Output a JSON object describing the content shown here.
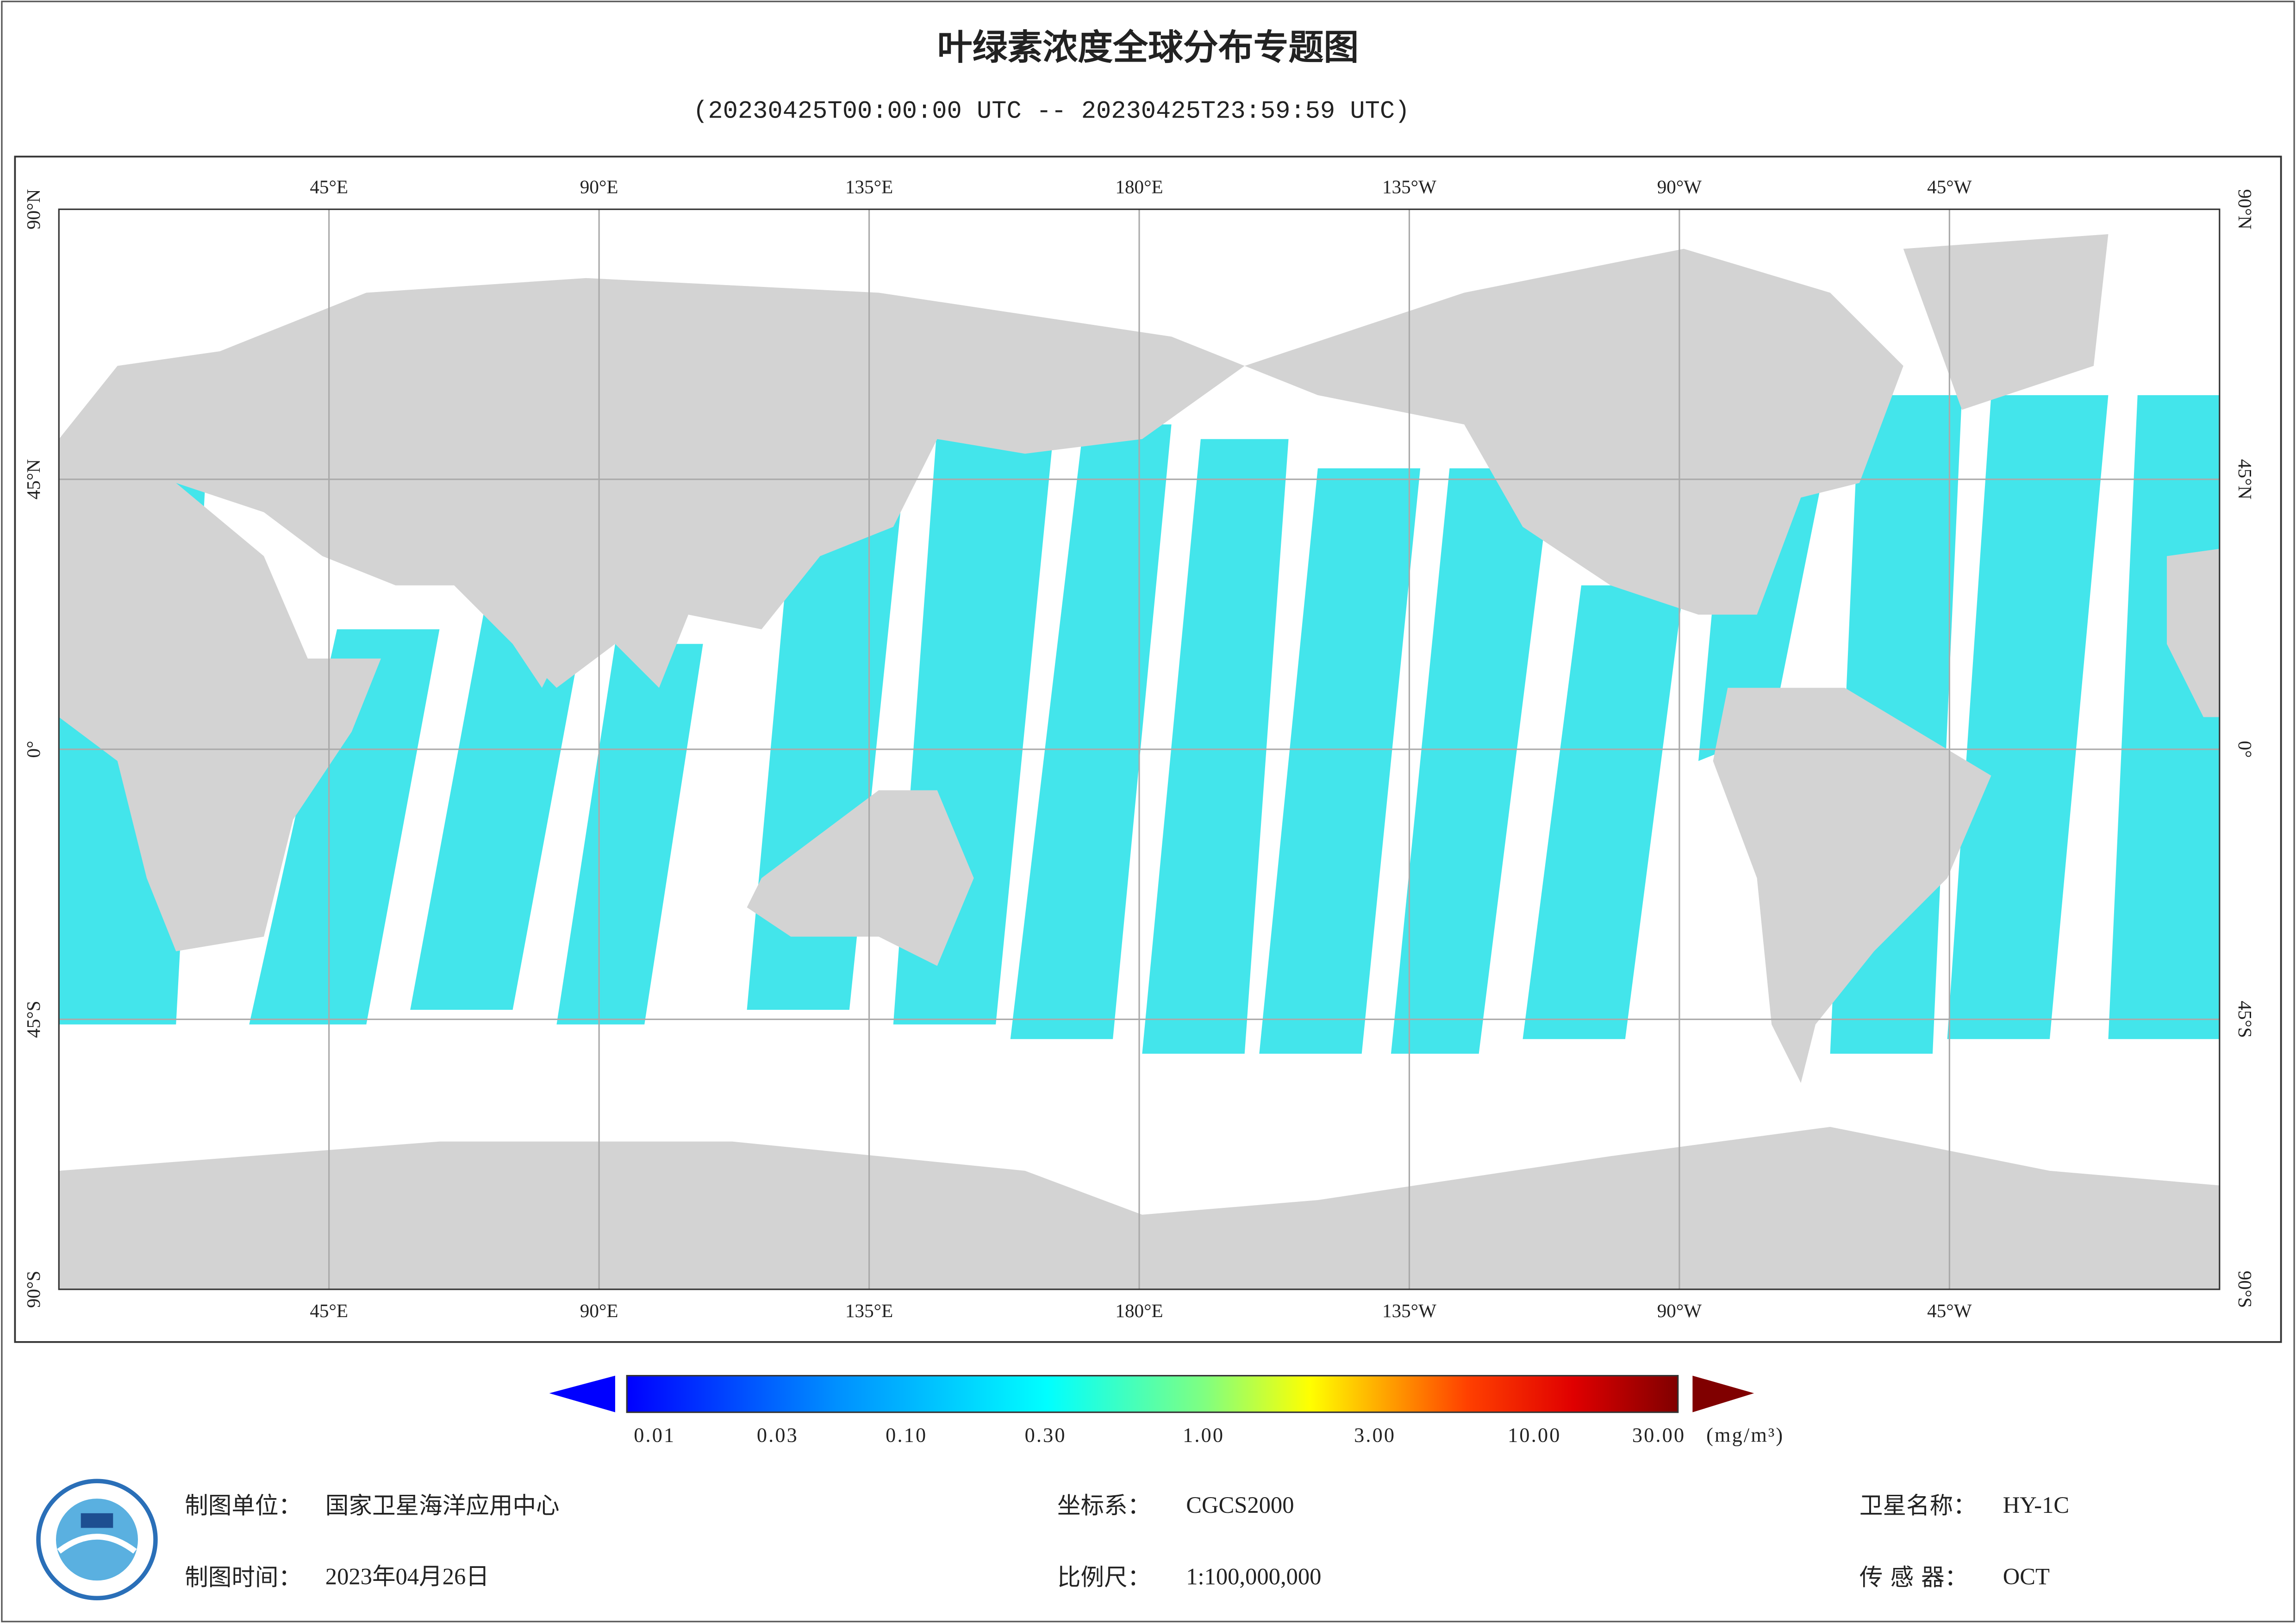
{
  "header": {
    "title": "叶绿素浓度全球分布专题图",
    "subtitle": "(20230425T00:00:00 UTC -- 20230425T23:59:59 UTC)"
  },
  "map": {
    "lon_labels": [
      "45°E",
      "90°E",
      "135°E",
      "180°E",
      "135°W",
      "90°W",
      "45°W"
    ],
    "lat_labels": [
      "90°N",
      "45°N",
      "0°",
      "45°S",
      "90°S"
    ]
  },
  "legend": {
    "ticks": [
      "0.01",
      "0.03",
      "0.10",
      "0.30",
      "1.00",
      "3.00",
      "10.00",
      "30.00"
    ],
    "unit": "(mg/m³)"
  },
  "footer": {
    "rows": [
      [
        {
          "label": "制图单位：",
          "value": "国家卫星海洋应用中心"
        },
        {
          "label": "坐标系：",
          "value": "CGCS2000"
        },
        {
          "label": "卫星名称：",
          "value": "HY-1C"
        }
      ],
      [
        {
          "label": "制图时间：",
          "value": "2023年04月26日"
        },
        {
          "label": "比例尺：",
          "value": "1:100,000,000"
        },
        {
          "label": "传 感 器：",
          "value": "OCT"
        }
      ]
    ]
  }
}
